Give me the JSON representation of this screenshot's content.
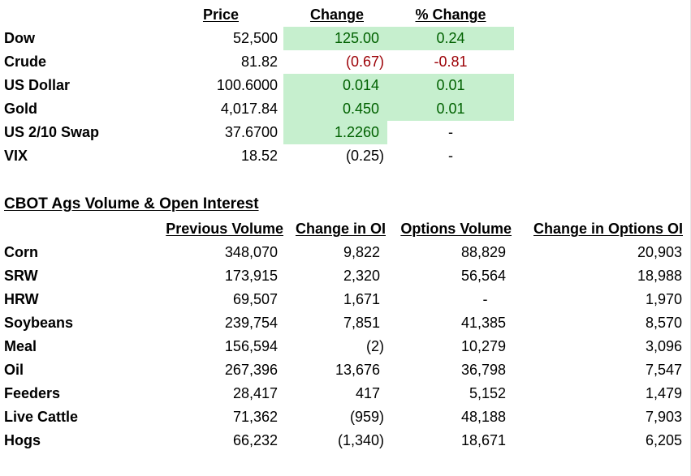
{
  "market": {
    "headers": {
      "price": "Price",
      "change": "Change",
      "pct_change": "% Change"
    },
    "rows": [
      {
        "label": "Dow",
        "price": "52,500",
        "change": "125.00",
        "pct": "0.24"
      },
      {
        "label": "Crude",
        "price": "81.82",
        "change": "(0.67)",
        "pct": "-0.81"
      },
      {
        "label": "US Dollar",
        "price": "100.6000",
        "change": "0.014",
        "pct": "0.01"
      },
      {
        "label": "Gold",
        "price": "4,017.84",
        "change": "0.450",
        "pct": "0.01"
      },
      {
        "label": "US 2/10 Swap",
        "price": "37.6700",
        "change": "1.2260",
        "pct": "-"
      },
      {
        "label": "VIX",
        "price": "18.52",
        "change": "(0.25)",
        "pct": "-"
      }
    ]
  },
  "cbot": {
    "title": "CBOT Ags Volume & Open Interest",
    "headers": {
      "prev_volume": "Previous Volume",
      "change_oi": "Change in OI",
      "options_volume": "Options Volume",
      "change_options_oi": "Change in Options OI"
    },
    "rows": [
      {
        "label": "Corn",
        "prev_volume": "348,070",
        "change_oi": "9,822",
        "options_volume": "88,829",
        "change_options_oi": "20,903"
      },
      {
        "label": "SRW",
        "prev_volume": "173,915",
        "change_oi": "2,320",
        "options_volume": "56,564",
        "change_options_oi": "18,988"
      },
      {
        "label": "HRW",
        "prev_volume": "69,507",
        "change_oi": "1,671",
        "options_volume": "-",
        "change_options_oi": "1,970"
      },
      {
        "label": "Soybeans",
        "prev_volume": "239,754",
        "change_oi": "7,851",
        "options_volume": "41,385",
        "change_options_oi": "8,570"
      },
      {
        "label": "Meal",
        "prev_volume": "156,594",
        "change_oi": "(2)",
        "options_volume": "10,279",
        "change_options_oi": "3,096"
      },
      {
        "label": "Oil",
        "prev_volume": "267,396",
        "change_oi": "13,676",
        "options_volume": "36,798",
        "change_options_oi": "7,547"
      },
      {
        "label": "Feeders",
        "prev_volume": "28,417",
        "change_oi": "417",
        "options_volume": "5,152",
        "change_options_oi": "1,479"
      },
      {
        "label": "Live Cattle",
        "prev_volume": "71,362",
        "change_oi": "(959)",
        "options_volume": "48,188",
        "change_options_oi": "7,903"
      },
      {
        "label": "Hogs",
        "prev_volume": "66,232",
        "change_oi": "(1,340)",
        "options_volume": "18,671",
        "change_options_oi": "6,205"
      }
    ]
  },
  "colors": {
    "positive_fill": "#c6efce",
    "positive_text": "#006100",
    "negative_text": "#9c0006"
  }
}
